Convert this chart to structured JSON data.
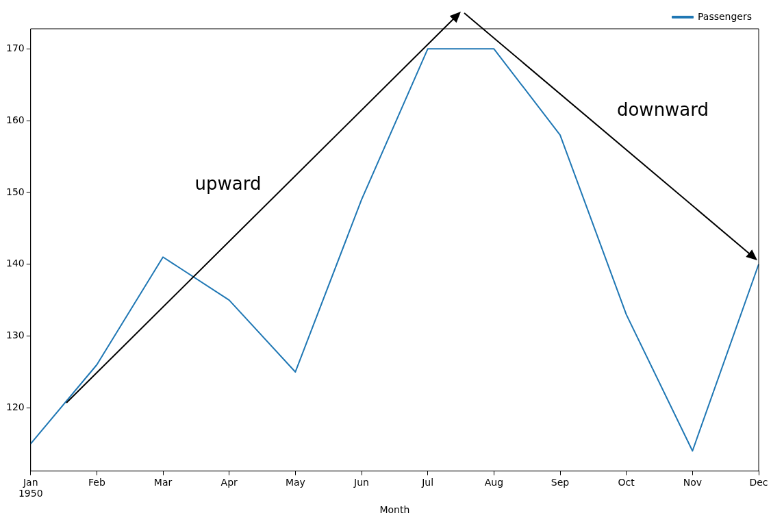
{
  "chart_data": {
    "type": "line",
    "xlabel": "Month",
    "categories": [
      "Jan\n1950",
      "Feb",
      "Mar",
      "Apr",
      "May",
      "Jun",
      "Jul",
      "Aug",
      "Sep",
      "Oct",
      "Nov",
      "Dec"
    ],
    "series": [
      {
        "name": "Passengers",
        "color": "#1f77b4",
        "values": [
          115,
          126,
          141,
          135,
          125,
          149,
          170,
          170,
          158,
          133,
          114,
          140
        ]
      }
    ],
    "ylim": [
      111.2,
      172.8
    ],
    "yticks": [
      120,
      130,
      140,
      150,
      160,
      170
    ],
    "annotations": [
      "upward",
      "downward"
    ],
    "grid": false,
    "legend": "top right",
    "marker": "none",
    "line_style": "solid"
  }
}
